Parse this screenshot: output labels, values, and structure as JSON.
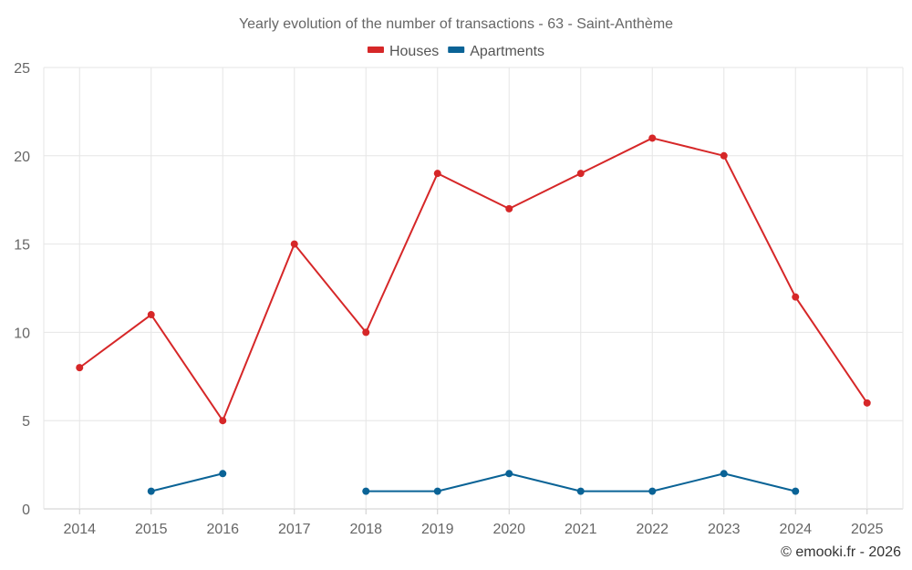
{
  "chart_data": {
    "type": "line",
    "title": "Yearly evolution of the number of transactions - 63 - Saint-Anthème",
    "xlabel": "",
    "ylabel": "",
    "categories": [
      "2014",
      "2015",
      "2016",
      "2017",
      "2018",
      "2019",
      "2020",
      "2021",
      "2022",
      "2023",
      "2024",
      "2025"
    ],
    "ylim": [
      0,
      25
    ],
    "yticks": [
      0,
      5,
      10,
      15,
      20,
      25
    ],
    "grid": true,
    "legend_position": "top-center",
    "series": [
      {
        "name": "Houses",
        "color": "#d62728",
        "values": [
          8,
          11,
          5,
          15,
          10,
          19,
          17,
          19,
          21,
          20,
          12,
          6
        ]
      },
      {
        "name": "Apartments",
        "color": "#0a6396",
        "values": [
          null,
          1,
          2,
          null,
          1,
          1,
          2,
          1,
          1,
          2,
          1,
          null
        ]
      }
    ]
  },
  "credit": "© emooki.fr - 2026"
}
